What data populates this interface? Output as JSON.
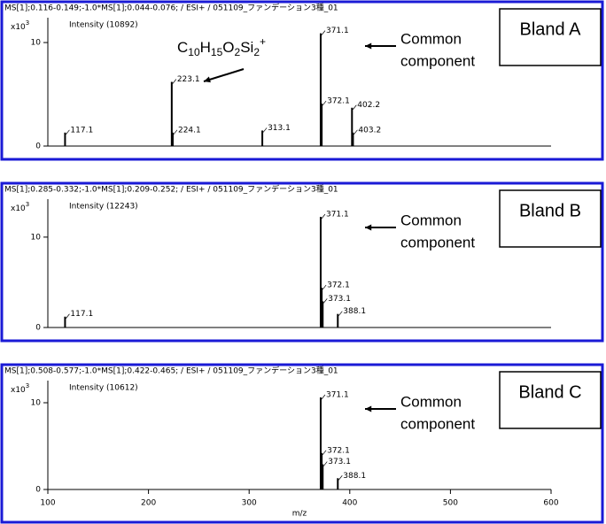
{
  "chart_data": [
    {
      "type": "stick",
      "header": "MS[1];0.116-0.149;-1.0*MS[1];0.044-0.076; / ESI+ / 051109_ファンデーション3種_01",
      "y_unit": {
        "base": "x10",
        "exponent": "3"
      },
      "intensity_label": "Intensity (10892)",
      "sample": "Bland A",
      "annotation": [
        "Common",
        "component"
      ],
      "formula": [
        {
          "text": "C",
          "shift": "base"
        },
        {
          "text": "10",
          "shift": "sub"
        },
        {
          "text": "H",
          "shift": "base"
        },
        {
          "text": "15",
          "shift": "sub"
        },
        {
          "text": "O",
          "shift": "base"
        },
        {
          "text": "2",
          "shift": "sub"
        },
        {
          "text": "Si",
          "shift": "base"
        },
        {
          "text": "2",
          "shift": "sub"
        },
        {
          "text": "+",
          "shift": "super"
        }
      ],
      "x": [
        117.1,
        223.1,
        224.1,
        313.1,
        371.1,
        372.1,
        402.2,
        403.2
      ],
      "values": [
        1.3,
        6.2,
        1.3,
        1.5,
        10.892,
        4.1,
        3.7,
        1.3
      ],
      "xlim": [
        100,
        600
      ],
      "ylim": [
        0,
        12.4
      ],
      "yticks": [
        0,
        10
      ],
      "color": "#000000",
      "frame_color": "#1a1ad6"
    },
    {
      "type": "stick",
      "header": "MS[1];0.285-0.332;-1.0*MS[1];0.209-0.252; / ESI+ / 051109_ファンデーション3種_01",
      "y_unit": {
        "base": "x10",
        "exponent": "3"
      },
      "intensity_label": "Intensity (12243)",
      "sample": "Bland B",
      "annotation": [
        "Common",
        "component"
      ],
      "x": [
        117.1,
        371.1,
        372.1,
        373.1,
        388.1
      ],
      "values": [
        1.2,
        12.243,
        4.4,
        2.9,
        1.5
      ],
      "xlim": [
        100,
        600
      ],
      "ylim": [
        0,
        14.2
      ],
      "yticks": [
        0,
        10
      ],
      "color": "#000000",
      "frame_color": "#1a1ad6"
    },
    {
      "type": "stick",
      "header": "MS[1];0.508-0.577;-1.0*MS[1];0.422-0.465; / ESI+ / 051109_ファンデーション3種_01",
      "y_unit": {
        "base": "x10",
        "exponent": "3"
      },
      "intensity_label": "Intensity (10612)",
      "sample": "Bland C",
      "annotation": [
        "Common",
        "component"
      ],
      "x": [
        371.1,
        372.1,
        373.1,
        388.1
      ],
      "values": [
        10.612,
        4.2,
        2.9,
        1.3
      ],
      "xlim": [
        100,
        600
      ],
      "ylim": [
        0,
        12.55
      ],
      "yticks": [
        0,
        10
      ],
      "xticks": [
        100,
        200,
        300,
        400,
        500,
        600
      ],
      "x_label": "m/z",
      "color": "#000000",
      "frame_color": "#1a1ad6"
    }
  ]
}
